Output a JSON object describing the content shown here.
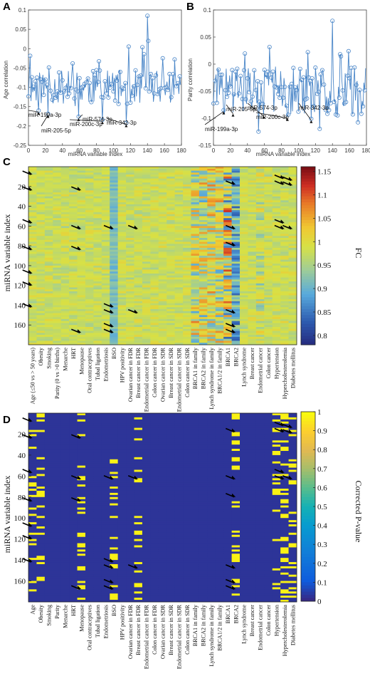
{
  "panels": {
    "a": "A",
    "b": "B",
    "c": "C",
    "d": "D"
  },
  "chart_data": [
    {
      "type": "line",
      "panel": "A",
      "title": "",
      "xlabel": "miRNA variable index",
      "ylabel": "Age correlation",
      "xlim": [
        0,
        180
      ],
      "ylim": [
        -0.25,
        0.1
      ],
      "xticks": [
        "0",
        "20",
        "40",
        "60",
        "80",
        "100",
        "120",
        "140",
        "160",
        "180"
      ],
      "yticks": [
        "0.1",
        "0.05",
        "0",
        "-0.05",
        "-0.1",
        "-0.15",
        "-0.2",
        "-0.25"
      ],
      "marker": "open-circle",
      "color": "#4a86c8",
      "annotations": [
        {
          "text": "miR-199a-3p",
          "x": 12
        },
        {
          "text": "miR-205-5p",
          "x": 23
        },
        {
          "text": "miR-574-3p",
          "x": 59
        },
        {
          "text": "miR-200c-3p",
          "x": 87
        },
        {
          "text": "miR-342-3p",
          "x": 115
        }
      ],
      "seed": 11
    },
    {
      "type": "line",
      "panel": "B",
      "title": "",
      "xlabel": "miRNA variable index",
      "ylabel": "Parity correlation",
      "xlim": [
        0,
        180
      ],
      "ylim": [
        -0.15,
        0.1
      ],
      "xticks": [
        "0",
        "20",
        "40",
        "60",
        "80",
        "100",
        "120",
        "140",
        "160",
        "180"
      ],
      "yticks": [
        "0.1",
        "0.05",
        "0",
        "-0.05",
        "-0.1",
        "-0.15"
      ],
      "marker": "open-circle",
      "color": "#4a86c8",
      "annotations": [
        {
          "text": "miR-199a-3p",
          "x": 12
        },
        {
          "text": "miR-205-5p",
          "x": 23
        },
        {
          "text": "miR-574-3p",
          "x": 59
        },
        {
          "text": "miR-200c-3p",
          "x": 87
        },
        {
          "text": "miR-342-3p",
          "x": 115
        }
      ],
      "seed": 29
    },
    {
      "type": "heatmap",
      "panel": "C",
      "ylabel": "miRNA variable index",
      "yticks": [
        "20",
        "40",
        "60",
        "80",
        "100",
        "120",
        "140",
        "160"
      ],
      "colorbar_label": "FC",
      "colorbar_ticks": [
        "1.15",
        "1.1",
        "1.05",
        "1",
        "0.95",
        "0.9",
        "0.85",
        "0.8"
      ],
      "colormap": "jet",
      "vmin": 0.78,
      "vmax": 1.16,
      "columns": [
        "Age (≤50 vs > 50 years)",
        "Obesity",
        "Smoking",
        "Parity (0 vs >0 births)",
        "Menarche",
        "HRT",
        "Menopause",
        "Oral contraceptives",
        "Tubal ligation",
        "Endometriosis",
        "BSO",
        "HPV positivity",
        "Ovarian cancer in FDR",
        "Breast cancer in FDR",
        "Endometrial cancer in FDR",
        "Colon cancer in FDR",
        "Ovarian cancer in SDR",
        "Breast cancer in SDR",
        "Endometrial cancer in SDR",
        "Colon cancer in SDR",
        "BRCA1 in family",
        "BRCA2 in family",
        "Lynch syndrome in family",
        "BRCA1/2 in family",
        "BRCA1",
        "BRCA2",
        "Lynch syndrome",
        "Breast cancer",
        "Endometrial cancer",
        "Colon cancer",
        "Hypertension",
        "Hypercholesterolemia",
        "Diabetes mellitus"
      ],
      "seed": 7
    },
    {
      "type": "heatmap",
      "panel": "D",
      "ylabel": "miRNA variable index",
      "yticks": [
        "20",
        "40",
        "60",
        "80",
        "100",
        "120",
        "140",
        "160"
      ],
      "colorbar_label": "Corrected P-value",
      "colorbar_ticks": [
        "1",
        "0.9",
        "0.8",
        "0.7",
        "0.6",
        "0.5",
        "0.4",
        "0.3",
        "0.2",
        "0.1",
        "0"
      ],
      "colormap": "parula",
      "vmin": 0,
      "vmax": 1,
      "columns": [
        "Age",
        "Obesity",
        "Smoking",
        "Parity",
        "Menarche",
        "HRT",
        "Menopause",
        "Oral contraceptives",
        "Tubal ligation",
        "Endometriosis",
        "BSO",
        "HPV positivity",
        "Ovarian cancer in FDR",
        "Breast cancer in FDR",
        "Endometrial cancer in FDR",
        "Colon cancer in FDR",
        "Ovarian cancer in SDR",
        "Breast cancer in SDR",
        "Endometrial cancer in SDR",
        "Colon cancer in SDR",
        "BRCA1 in family",
        "BRCA2 in family",
        "Lynch syndrome in family",
        "BRCA1/2 in family",
        "BRCA1",
        "BRCA2",
        "Lynch syndrome",
        "Breast cancer",
        "Endometrial cancer",
        "Colon cancer",
        "Hypertension",
        "Hypercholesterolemia",
        "Diabetes mellitus"
      ],
      "significant_columns": [
        0,
        1,
        6,
        10,
        13,
        25,
        30,
        31,
        32
      ],
      "seed": 3
    }
  ],
  "arrow_marks": [
    {
      "column": 0,
      "row": 8
    },
    {
      "column": 0,
      "row": 24
    },
    {
      "column": 0,
      "row": 57
    },
    {
      "column": 0,
      "row": 84
    },
    {
      "column": 0,
      "row": 108
    },
    {
      "column": 0,
      "row": 120
    },
    {
      "column": 0,
      "row": 142
    },
    {
      "column": 6,
      "row": 24
    },
    {
      "column": 6,
      "row": 63
    },
    {
      "column": 6,
      "row": 84
    },
    {
      "column": 6,
      "row": 168
    },
    {
      "column": 10,
      "row": 63
    },
    {
      "column": 10,
      "row": 142
    },
    {
      "column": 10,
      "row": 148
    },
    {
      "column": 10,
      "row": 162
    },
    {
      "column": 10,
      "row": 168
    },
    {
      "column": 13,
      "row": 63
    },
    {
      "column": 13,
      "row": 148
    },
    {
      "column": 25,
      "row": 18
    },
    {
      "column": 25,
      "row": 63
    },
    {
      "column": 25,
      "row": 80
    },
    {
      "column": 25,
      "row": 148
    },
    {
      "column": 25,
      "row": 162
    },
    {
      "column": 25,
      "row": 168
    },
    {
      "column": 31,
      "row": 12
    },
    {
      "column": 31,
      "row": 18
    },
    {
      "column": 31,
      "row": 57
    },
    {
      "column": 31,
      "row": 63
    },
    {
      "column": 32,
      "row": 14
    },
    {
      "column": 32,
      "row": 19
    },
    {
      "column": 32,
      "row": 63
    }
  ]
}
